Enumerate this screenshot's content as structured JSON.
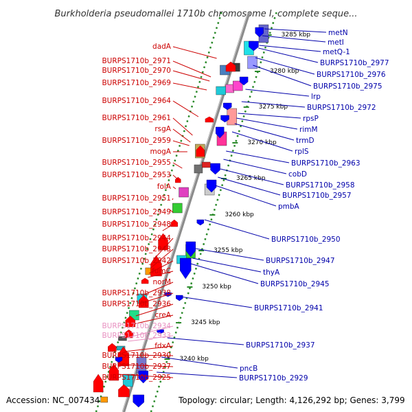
{
  "title": "Burkholderia pseudomallei 1710b chromosome I, complete seque...",
  "footer": {
    "accession": "Accession: NC_007434",
    "summary": "Topology: circular; Length: 4,126,292 bp; Genes: 3,799"
  },
  "colors": {
    "axis": "#808080",
    "forward": "#ff0000",
    "reverse": "#0000ff",
    "left_label": "#cc0000",
    "right_label": "#0000aa",
    "pseudo_label": "#e890c0",
    "grid": "#2a8a2a"
  },
  "ticks": [
    "3285 kbp",
    "3280 kbp",
    "3275 kbp",
    "3270 kbp",
    "3265 kbp",
    "3260 kbp",
    "3255 kbp",
    "3250 kbp",
    "3245 kbp",
    "3240 kbp"
  ],
  "labels_left": [
    {
      "text": "dadA",
      "style": "normal"
    },
    {
      "text": "BURPS1710b_2971",
      "style": "normal"
    },
    {
      "text": "BURPS1710b_2970",
      "style": "normal"
    },
    {
      "text": "BURPS1710b_2969",
      "style": "normal"
    },
    {
      "text": "BURPS1710b_2964",
      "style": "normal"
    },
    {
      "text": "BURPS1710b_2961",
      "style": "normal"
    },
    {
      "text": "rsgA",
      "style": "normal"
    },
    {
      "text": "BURPS1710b_2959",
      "style": "normal"
    },
    {
      "text": "mogA",
      "style": "normal"
    },
    {
      "text": "BURPS1710b_2955",
      "style": "normal"
    },
    {
      "text": "BURPS1710b_2953",
      "style": "normal"
    },
    {
      "text": "folA",
      "style": "normal"
    },
    {
      "text": "BURPS1710b_2951",
      "style": "normal"
    },
    {
      "text": "BURPS1710b_2949",
      "style": "normal"
    },
    {
      "text": "BURPS1710b_2948",
      "style": "normal"
    },
    {
      "text": "BURPS1710b_2944",
      "style": "normal"
    },
    {
      "text": "BURPS1710b_2943",
      "style": "normal"
    },
    {
      "text": "BURPS1710b_2942",
      "style": "normal"
    },
    {
      "text": "fumC",
      "style": "normal"
    },
    {
      "text": "norM",
      "style": "normal"
    },
    {
      "text": "BURPS1710b_2938",
      "style": "normal"
    },
    {
      "text": "BURPS1710b_2936",
      "style": "normal"
    },
    {
      "text": "creA",
      "style": "normal"
    },
    {
      "text": "BURPS1710b_2934",
      "style": "pseudo"
    },
    {
      "text": "BURPS1710b_2933",
      "style": "pseudo"
    },
    {
      "text": "fdxA",
      "style": "normal"
    },
    {
      "text": "BURPS1710b_2930",
      "style": "normal"
    },
    {
      "text": "BURPS1710b_2927",
      "style": "normal"
    },
    {
      "text": "BURPS1710b_2925",
      "style": "normal"
    }
  ],
  "labels_right": [
    "metN",
    "metI",
    "metQ-1",
    "BURPS1710b_2977",
    "BURPS1710b_2976",
    "BURPS1710b_2975",
    "lrp",
    "BURPS1710b_2972",
    "rpsP",
    "rimM",
    "trmD",
    "rplS",
    "BURPS1710b_2963",
    "cobD",
    "BURPS1710b_2958",
    "BURPS1710b_2957",
    "pmbA",
    "BURPS1710b_2950",
    "BURPS1710b_2947",
    "thyA",
    "BURPS1710b_2945",
    "BURPS1710b_2941",
    "BURPS1710b_2937",
    "pncB",
    "BURPS1710b_2929"
  ]
}
